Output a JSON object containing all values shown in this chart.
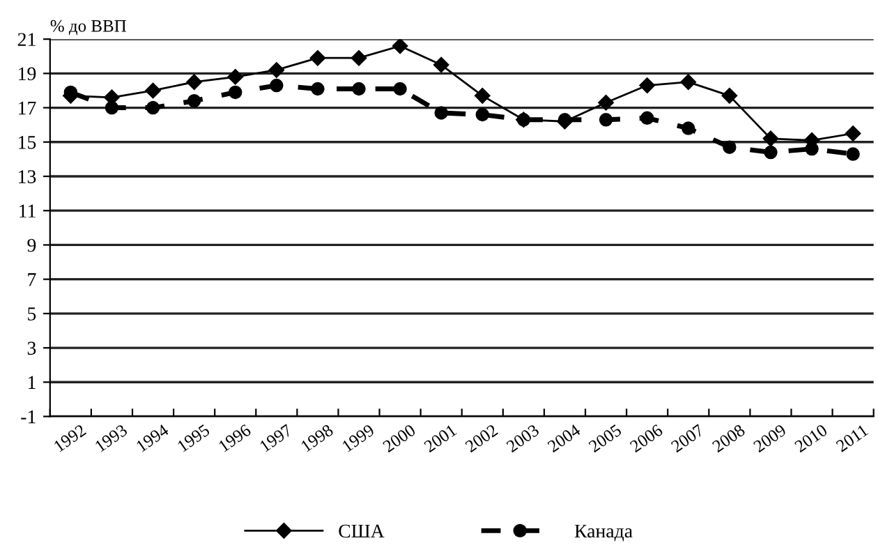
{
  "chart_data": {
    "type": "line",
    "ylabel": "% до ВВП",
    "categories": [
      "1992",
      "1993",
      "1994",
      "1995",
      "1996",
      "1997",
      "1998",
      "1999",
      "2000",
      "2001",
      "2002",
      "2003",
      "2004",
      "2005",
      "2006",
      "2007",
      "2008",
      "2009",
      "2010",
      "2011"
    ],
    "series": [
      {
        "name": "США",
        "color": "#000000",
        "marker": "diamond",
        "line_style": "solid",
        "values": [
          17.7,
          17.6,
          18.0,
          18.5,
          18.8,
          19.2,
          19.9,
          19.9,
          20.6,
          19.5,
          17.7,
          16.3,
          16.2,
          17.3,
          18.3,
          18.5,
          17.7,
          15.2,
          15.1,
          15.5
        ]
      },
      {
        "name": "Канада",
        "color": "#000000",
        "marker": "circle",
        "line_style": "dashed",
        "values": [
          17.9,
          17.0,
          17.0,
          17.4,
          17.9,
          18.3,
          18.1,
          18.1,
          18.1,
          16.7,
          16.6,
          16.3,
          16.3,
          16.3,
          16.4,
          15.8,
          14.7,
          14.4,
          14.6,
          14.3
        ]
      }
    ],
    "ylim": [
      -1,
      21
    ],
    "yticks": [
      -1,
      1,
      3,
      5,
      7,
      9,
      11,
      13,
      15,
      17,
      19,
      21
    ],
    "grid": "y",
    "legend": "bottom"
  }
}
